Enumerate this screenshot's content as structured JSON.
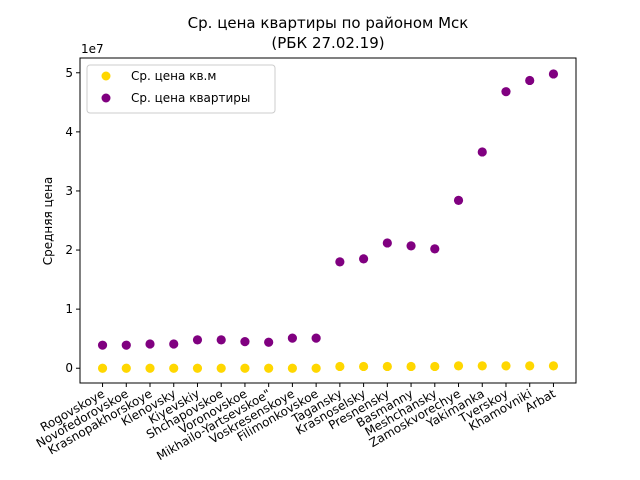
{
  "chart_data": {
    "type": "scatter",
    "title_line1": "Ср. цена квартиры по районом Мск",
    "title_line2": "(РБК 27.02.19)",
    "ylabel": "Средняя цена",
    "y_offset_label": "1e7",
    "ylim": [
      -0.25,
      5.25
    ],
    "yticks": [
      0,
      1,
      2,
      3,
      4,
      5
    ],
    "y_scale_note": "values in units of 1e7",
    "grid": false,
    "legend_position": "top-left",
    "categories": [
      "Rogovskoye",
      "Novofedorovskoe",
      "Krasnopakhorskoye",
      "Klenovsky",
      "Kiyevskiy",
      "Shchapovskoe",
      "Voronovskoe",
      "Mikhailo-Yartsevskoe\"",
      "Voskresenskoye",
      "Filimonkovskoe",
      "Tagansky",
      "Krasnoselsky",
      "Presnensky",
      "Basmanny",
      "Meshchansky",
      "Zamoskvorechye",
      "Yakimanka",
      "Tverskoy",
      "Khamovniki",
      "Arbat"
    ],
    "series": [
      {
        "name": "Ср. цена кв.м",
        "color": "#ffd700",
        "values": [
          0.0,
          0.0,
          0.0,
          0.0,
          0.0,
          0.0,
          0.0,
          0.0,
          0.0,
          0.0,
          0.03,
          0.03,
          0.03,
          0.03,
          0.03,
          0.04,
          0.04,
          0.04,
          0.04,
          0.04
        ]
      },
      {
        "name": "Ср. цена квартиры",
        "color": "#800080",
        "values": [
          0.39,
          0.39,
          0.41,
          0.41,
          0.48,
          0.48,
          0.45,
          0.44,
          0.51,
          0.51,
          1.8,
          1.85,
          2.12,
          2.07,
          2.02,
          2.84,
          3.66,
          4.68,
          4.87,
          4.98
        ]
      }
    ]
  }
}
